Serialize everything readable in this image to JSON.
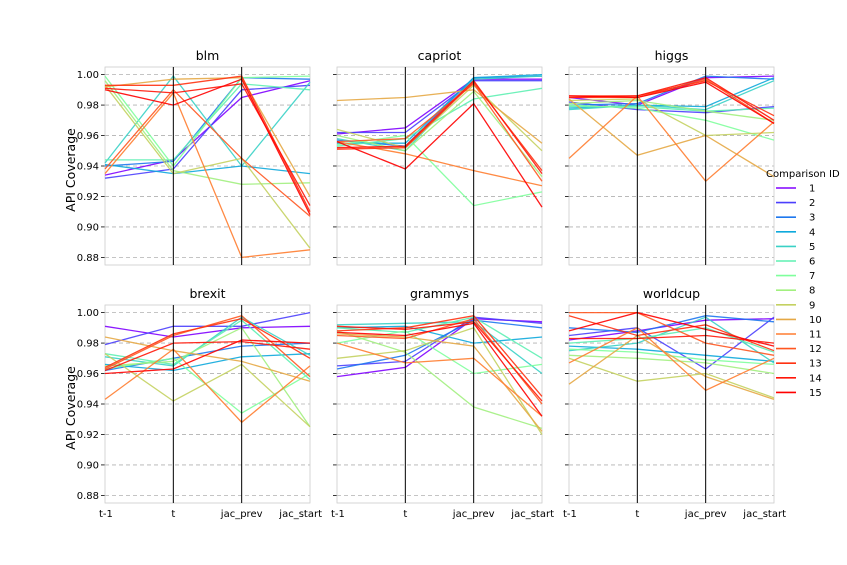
{
  "figure": {
    "ylabel": "API Coverage",
    "legend_title": "Comparison ID",
    "legend_placement": "right"
  },
  "chart_data": {
    "type": "line",
    "subtype": "parallel-coordinates small multiples",
    "categories": [
      "t-1",
      "t",
      "jac_prev",
      "jac_start"
    ],
    "yticks": [
      "0.88",
      "0.90",
      "0.92",
      "0.94",
      "0.96",
      "0.98",
      "1.00"
    ],
    "ylim": [
      0.875,
      1.005
    ],
    "grid": "horizontal dashed",
    "ids": [
      "1",
      "2",
      "3",
      "4",
      "5",
      "6",
      "7",
      "8",
      "9",
      "10",
      "11",
      "12",
      "13",
      "14",
      "15"
    ],
    "colors": [
      "#8000ff",
      "#4b3ffd",
      "#1e78ee",
      "#0ea9dc",
      "#3ad1c6",
      "#5ef0b2",
      "#7fff9c",
      "#a2f07f",
      "#c4d161",
      "#e5a845",
      "#ff7d30",
      "#ff5620",
      "#ff3211",
      "#ff1608",
      "#ff0000"
    ],
    "panels": [
      {
        "title": "blm",
        "series": [
          {
            "name": "1",
            "values": [
              0.934,
              0.944,
              0.985,
              0.996
            ]
          },
          {
            "name": "2",
            "values": [
              0.932,
              0.938,
              0.99,
              0.993
            ]
          },
          {
            "name": "3",
            "values": [
              0.94,
              0.943,
              0.998,
              0.997
            ]
          },
          {
            "name": "4",
            "values": [
              0.941,
              0.935,
              0.94,
              0.935
            ]
          },
          {
            "name": "5",
            "values": [
              0.942,
              0.999,
              0.94,
              0.995
            ]
          },
          {
            "name": "6",
            "values": [
              0.944,
              0.944,
              0.994,
              0.99
            ]
          },
          {
            "name": "7",
            "values": [
              0.999,
              0.94,
              0.998,
              0.999
            ]
          },
          {
            "name": "8",
            "values": [
              0.996,
              0.937,
              0.928,
              0.929
            ]
          },
          {
            "name": "9",
            "values": [
              0.993,
              0.935,
              0.945,
              0.886
            ]
          },
          {
            "name": "10",
            "values": [
              0.992,
              0.997,
              0.998,
              0.92
            ]
          },
          {
            "name": "11",
            "values": [
              0.935,
              0.988,
              0.88,
              0.885
            ]
          },
          {
            "name": "12",
            "values": [
              0.938,
              0.99,
              0.945,
              0.907
            ]
          },
          {
            "name": "13",
            "values": [
              0.993,
              0.993,
              0.999,
              0.91
            ]
          },
          {
            "name": "14",
            "values": [
              0.991,
              0.988,
              0.994,
              0.914
            ]
          },
          {
            "name": "15",
            "values": [
              0.99,
              0.98,
              0.997,
              0.908
            ]
          }
        ]
      },
      {
        "title": "capriot",
        "series": [
          {
            "name": "1",
            "values": [
              0.961,
              0.965,
              0.997,
              0.997
            ]
          },
          {
            "name": "2",
            "values": [
              0.962,
              0.962,
              0.996,
              0.996
            ]
          },
          {
            "name": "3",
            "values": [
              0.957,
              0.953,
              0.998,
              0.999
            ]
          },
          {
            "name": "4",
            "values": [
              0.955,
              0.955,
              0.998,
              1.0
            ]
          },
          {
            "name": "5",
            "values": [
              0.958,
              0.95,
              0.997,
              0.999
            ]
          },
          {
            "name": "6",
            "values": [
              0.953,
              0.958,
              0.984,
              0.991
            ]
          },
          {
            "name": "7",
            "values": [
              0.954,
              0.96,
              0.914,
              0.923
            ]
          },
          {
            "name": "8",
            "values": [
              0.96,
              0.95,
              0.989,
              0.933
            ]
          },
          {
            "name": "9",
            "values": [
              0.964,
              0.952,
              0.993,
              0.95
            ]
          },
          {
            "name": "10",
            "values": [
              0.983,
              0.985,
              0.99,
              0.955
            ]
          },
          {
            "name": "11",
            "values": [
              0.956,
              0.948,
              0.937,
              0.927
            ]
          },
          {
            "name": "12",
            "values": [
              0.956,
              0.958,
              0.994,
              0.93
            ]
          },
          {
            "name": "13",
            "values": [
              0.951,
              0.952,
              0.995,
              0.937
            ]
          },
          {
            "name": "14",
            "values": [
              0.952,
              0.953,
              0.996,
              0.935
            ]
          },
          {
            "name": "15",
            "values": [
              0.956,
              0.938,
              0.981,
              0.913
            ]
          }
        ]
      },
      {
        "title": "higgs",
        "series": [
          {
            "name": "1",
            "values": [
              0.985,
              0.98,
              0.998,
              0.999
            ]
          },
          {
            "name": "2",
            "values": [
              0.982,
              0.977,
              0.975,
              0.979
            ]
          },
          {
            "name": "3",
            "values": [
              0.98,
              0.981,
              0.999,
              0.997
            ]
          },
          {
            "name": "4",
            "values": [
              0.978,
              0.98,
              0.979,
              0.998
            ]
          },
          {
            "name": "5",
            "values": [
              0.977,
              0.98,
              0.977,
              0.996
            ]
          },
          {
            "name": "6",
            "values": [
              0.979,
              0.979,
              0.976,
              0.978
            ]
          },
          {
            "name": "7",
            "values": [
              0.98,
              0.978,
              0.97,
              0.957
            ]
          },
          {
            "name": "8",
            "values": [
              0.981,
              0.983,
              0.976,
              0.97
            ]
          },
          {
            "name": "9",
            "values": [
              0.983,
              0.984,
              0.96,
              0.962
            ]
          },
          {
            "name": "10",
            "values": [
              0.984,
              0.947,
              0.96,
              0.933
            ]
          },
          {
            "name": "11",
            "values": [
              0.945,
              0.986,
              0.93,
              0.969
            ]
          },
          {
            "name": "12",
            "values": [
              0.985,
              0.985,
              0.997,
              0.968
            ]
          },
          {
            "name": "13",
            "values": [
              0.986,
              0.986,
              0.996,
              0.973
            ]
          },
          {
            "name": "14",
            "values": [
              0.985,
              0.986,
              0.998,
              0.97
            ]
          },
          {
            "name": "15",
            "values": [
              0.986,
              0.985,
              0.995,
              0.968
            ]
          }
        ]
      },
      {
        "title": "brexit",
        "series": [
          {
            "name": "1",
            "values": [
              0.991,
              0.984,
              0.99,
              0.991
            ]
          },
          {
            "name": "2",
            "values": [
              0.979,
              0.991,
              0.991,
              1.0
            ]
          },
          {
            "name": "3",
            "values": [
              0.962,
              0.97,
              0.978,
              0.98
            ]
          },
          {
            "name": "4",
            "values": [
              0.966,
              0.962,
              0.971,
              0.973
            ]
          },
          {
            "name": "5",
            "values": [
              0.971,
              0.965,
              0.997,
              0.972
            ]
          },
          {
            "name": "6",
            "values": [
              0.973,
              0.966,
              0.995,
              0.956
            ]
          },
          {
            "name": "7",
            "values": [
              0.963,
              0.97,
              0.934,
              0.96
            ]
          },
          {
            "name": "8",
            "values": [
              0.965,
              0.968,
              0.99,
              0.925
            ]
          },
          {
            "name": "9",
            "values": [
              0.973,
              0.942,
              0.966,
              0.925
            ]
          },
          {
            "name": "10",
            "values": [
              0.984,
              0.975,
              0.968,
              0.955
            ]
          },
          {
            "name": "11",
            "values": [
              0.943,
              0.976,
              0.928,
              0.965
            ]
          },
          {
            "name": "12",
            "values": [
              0.963,
              0.985,
              0.998,
              0.958
            ]
          },
          {
            "name": "13",
            "values": [
              0.964,
              0.986,
              0.996,
              0.97
            ]
          },
          {
            "name": "14",
            "values": [
              0.962,
              0.98,
              0.981,
              0.976
            ]
          },
          {
            "name": "15",
            "values": [
              0.96,
              0.963,
              0.982,
              0.98
            ]
          }
        ]
      },
      {
        "title": "grammys",
        "series": [
          {
            "name": "1",
            "values": [
              0.958,
              0.964,
              0.996,
              0.994
            ]
          },
          {
            "name": "2",
            "values": [
              0.965,
              0.968,
              0.997,
              0.993
            ]
          },
          {
            "name": "3",
            "values": [
              0.963,
              0.972,
              0.995,
              0.99
            ]
          },
          {
            "name": "4",
            "values": [
              0.99,
              0.991,
              0.98,
              0.984
            ]
          },
          {
            "name": "5",
            "values": [
              0.992,
              0.993,
              0.994,
              0.96
            ]
          },
          {
            "name": "6",
            "values": [
              0.99,
              0.987,
              0.997,
              0.97
            ]
          },
          {
            "name": "7",
            "values": [
              0.98,
              0.988,
              0.96,
              0.966
            ]
          },
          {
            "name": "8",
            "values": [
              0.988,
              0.974,
              0.938,
              0.924
            ]
          },
          {
            "name": "9",
            "values": [
              0.97,
              0.975,
              0.99,
              0.92
            ]
          },
          {
            "name": "10",
            "values": [
              0.986,
              0.984,
              0.978,
              0.922
            ]
          },
          {
            "name": "11",
            "values": [
              0.98,
              0.967,
              0.97,
              0.932
            ]
          },
          {
            "name": "12",
            "values": [
              0.985,
              0.983,
              0.996,
              0.94
            ]
          },
          {
            "name": "13",
            "values": [
              0.988,
              0.99,
              0.998,
              0.945
            ]
          },
          {
            "name": "14",
            "values": [
              0.991,
              0.989,
              0.994,
              0.942
            ]
          },
          {
            "name": "15",
            "values": [
              0.987,
              0.985,
              0.993,
              0.932
            ]
          }
        ]
      },
      {
        "title": "worldcup",
        "series": [
          {
            "name": "1",
            "values": [
              0.982,
              0.988,
              0.995,
              0.996
            ]
          },
          {
            "name": "2",
            "values": [
              0.985,
              0.99,
              0.963,
              0.997
            ]
          },
          {
            "name": "3",
            "values": [
              0.99,
              0.987,
              0.998,
              0.994
            ]
          },
          {
            "name": "4",
            "values": [
              0.978,
              0.976,
              0.972,
              0.968
            ]
          },
          {
            "name": "5",
            "values": [
              0.975,
              0.98,
              0.997,
              0.967
            ]
          },
          {
            "name": "6",
            "values": [
              0.98,
              0.983,
              0.99,
              0.974
            ]
          },
          {
            "name": "7",
            "values": [
              0.976,
              0.974,
              0.969,
              0.966
            ]
          },
          {
            "name": "8",
            "values": [
              0.972,
              0.97,
              0.967,
              0.96
            ]
          },
          {
            "name": "9",
            "values": [
              0.97,
              0.955,
              0.96,
              0.944
            ]
          },
          {
            "name": "10",
            "values": [
              0.953,
              0.985,
              0.958,
              0.943
            ]
          },
          {
            "name": "11",
            "values": [
              0.967,
              0.99,
              0.949,
              0.97
            ]
          },
          {
            "name": "12",
            "values": [
              1.0,
              1.0,
              0.98,
              0.972
            ]
          },
          {
            "name": "13",
            "values": [
              0.998,
              0.985,
              0.992,
              0.975
            ]
          },
          {
            "name": "14",
            "values": [
              0.983,
              0.983,
              0.985,
              0.98
            ]
          },
          {
            "name": "15",
            "values": [
              0.988,
              1.0,
              0.989,
              0.978
            ]
          }
        ]
      }
    ]
  }
}
